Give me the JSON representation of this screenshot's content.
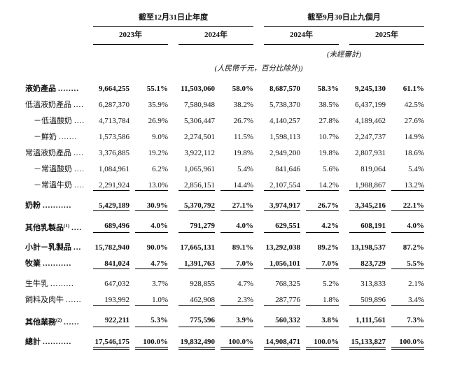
{
  "header": {
    "group1": {
      "title": "截至12月31日止年度",
      "years": [
        "2023年",
        "2024年"
      ]
    },
    "group2": {
      "title": "截至9月30日止九個月",
      "years": [
        "2024年",
        "2025年"
      ]
    },
    "unaudited_note": "(未經審計)",
    "unit_note": "(人民幣千元，百分比除外))"
  },
  "table": {
    "rows": [
      {
        "label": "液奶產品",
        "dots": "........",
        "sup": "",
        "bold": true,
        "indent": false,
        "underline": "none",
        "values": [
          "9,664,255",
          "55.1%",
          "11,503,060",
          "58.0%",
          "8,687,570",
          "58.3%",
          "9,245,130",
          "61.1%"
        ]
      },
      {
        "label": "低溫液奶產品",
        "dots": "....",
        "sup": "",
        "bold": false,
        "indent": false,
        "underline": "none",
        "values": [
          "6,287,370",
          "35.9%",
          "7,580,948",
          "38.2%",
          "5,738,370",
          "38.5%",
          "6,437,199",
          "42.5%"
        ]
      },
      {
        "label": "－低溫酸奶",
        "dots": "....",
        "sup": "",
        "bold": false,
        "indent": true,
        "underline": "none",
        "values": [
          "4,713,784",
          "26.9%",
          "5,306,447",
          "26.7%",
          "4,140,257",
          "27.8%",
          "4,189,462",
          "27.6%"
        ]
      },
      {
        "label": "－鮮奶",
        "dots": ".......",
        "sup": "",
        "bold": false,
        "indent": true,
        "underline": "none",
        "values": [
          "1,573,586",
          "9.0%",
          "2,274,501",
          "11.5%",
          "1,598,113",
          "10.7%",
          "2,247,737",
          "14.9%"
        ]
      },
      {
        "label": "常溫液奶產品",
        "dots": "....",
        "sup": "",
        "bold": false,
        "indent": false,
        "underline": "none",
        "values": [
          "3,376,885",
          "19.2%",
          "3,922,112",
          "19.8%",
          "2,949,200",
          "19.8%",
          "2,807,931",
          "18.6%"
        ]
      },
      {
        "label": "－常溫酸奶",
        "dots": "....",
        "sup": "",
        "bold": false,
        "indent": true,
        "underline": "none",
        "values": [
          "1,084,961",
          "6.2%",
          "1,065,961",
          "5.4%",
          "841,646",
          "5.6%",
          "819,064",
          "5.4%"
        ]
      },
      {
        "label": "－常溫牛奶",
        "dots": "....",
        "sup": "",
        "bold": false,
        "indent": true,
        "underline": "single",
        "values": [
          "2,291,924",
          "13.0%",
          "2,856,151",
          "14.4%",
          "2,107,554",
          "14.2%",
          "1,988,867",
          "13.2%"
        ]
      },
      {
        "label": "奶粉",
        "dots": "...........",
        "sup": "",
        "bold": true,
        "indent": false,
        "underline": "single",
        "values": [
          "5,429,189",
          "30.9%",
          "5,370,792",
          "27.1%",
          "3,974,917",
          "26.7%",
          "3,345,216",
          "22.1%"
        ]
      },
      {
        "label": "其他乳製品",
        "dots": "....",
        "sup": "(1)",
        "bold": true,
        "indent": false,
        "underline": "single",
        "values": [
          "689,496",
          "4.0%",
          "791,279",
          "4.0%",
          "629,551",
          "4.2%",
          "608,191",
          "4.0%"
        ]
      },
      {
        "label": "小計－乳製品",
        "dots": "...",
        "sup": "",
        "bold": true,
        "indent": false,
        "underline": "none",
        "values": [
          "15,782,940",
          "90.0%",
          "17,665,131",
          "89.1%",
          "13,292,038",
          "89.2%",
          "13,198,537",
          "87.2%"
        ]
      },
      {
        "label": "牧業",
        "dots": "...........",
        "sup": "",
        "bold": true,
        "indent": false,
        "underline": "single",
        "values": [
          "841,024",
          "4.7%",
          "1,391,763",
          "7.0%",
          "1,056,101",
          "7.0%",
          "823,729",
          "5.5%"
        ]
      },
      {
        "label": "生牛乳",
        "dots": ".........",
        "sup": "",
        "bold": false,
        "indent": false,
        "underline": "none",
        "values": [
          "647,032",
          "3.7%",
          "928,855",
          "4.7%",
          "768,325",
          "5.2%",
          "313,833",
          "2.1%"
        ]
      },
      {
        "label": "飼料及肉牛",
        "dots": "......",
        "sup": "",
        "bold": false,
        "indent": false,
        "underline": "single",
        "values": [
          "193,992",
          "1.0%",
          "462,908",
          "2.3%",
          "287,776",
          "1.8%",
          "509,896",
          "3.4%"
        ]
      },
      {
        "label": "其他業務",
        "dots": "......",
        "sup": "(2)",
        "bold": true,
        "indent": false,
        "underline": "single",
        "values": [
          "922,211",
          "5.3%",
          "775,596",
          "3.9%",
          "560,332",
          "3.8%",
          "1,111,561",
          "7.3%"
        ]
      },
      {
        "label": "總計",
        "dots": "...........",
        "sup": "",
        "bold": true,
        "indent": false,
        "underline": "double",
        "values": [
          "17,546,175",
          "100.0%",
          "19,832,490",
          "100.0%",
          "14,908,471",
          "100.0%",
          "15,133,827",
          "100.0%"
        ]
      }
    ]
  }
}
